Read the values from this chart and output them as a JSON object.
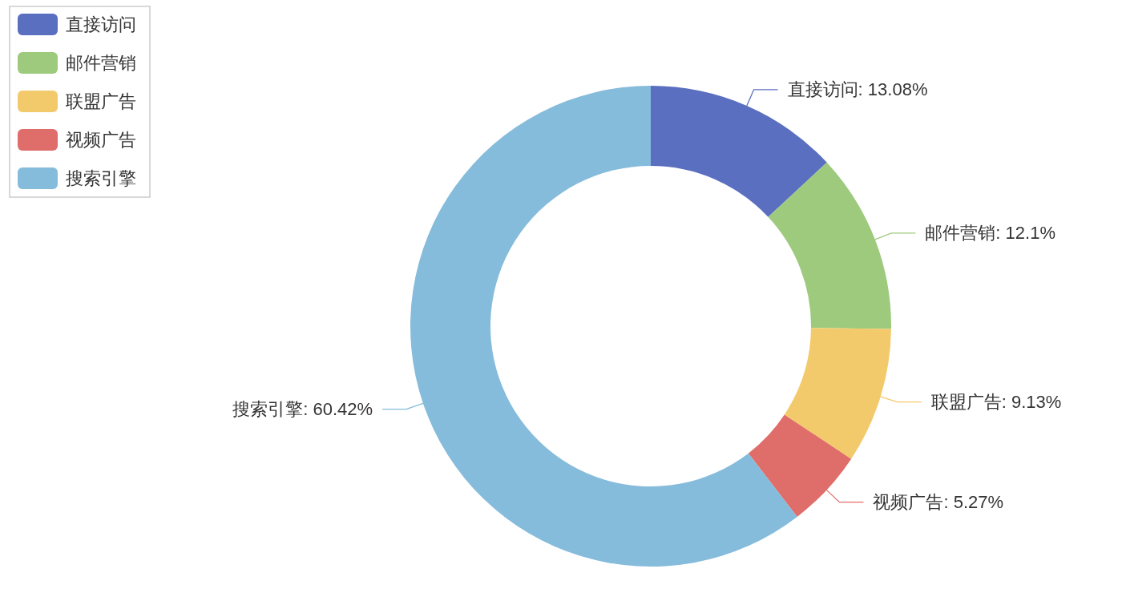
{
  "chart_data": {
    "type": "donut",
    "categories": [
      "直接访问",
      "邮件营销",
      "联盟广告",
      "视频广告",
      "搜索引擎"
    ],
    "values": [
      13.08,
      12.1,
      9.13,
      5.27,
      60.42
    ],
    "value_labels": [
      "直接访问: 13.08%",
      "邮件营销: 12.1%",
      "联盟广告: 9.13%",
      "视频广告: 5.27%",
      "搜索引擎: 60.42%"
    ],
    "colors": [
      "#5a6fc0",
      "#9eca7e",
      "#f3ca6b",
      "#df6e6a",
      "#86bcdb"
    ],
    "legend": "top left"
  }
}
